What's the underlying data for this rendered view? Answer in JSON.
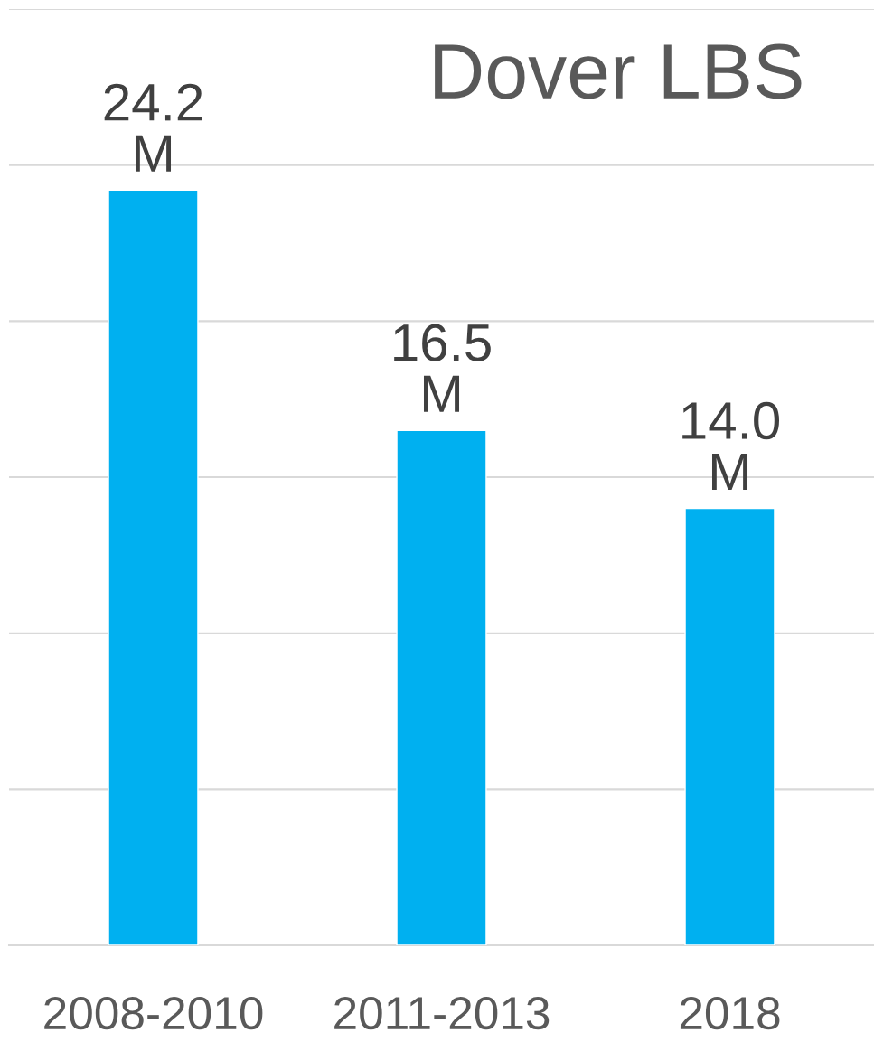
{
  "chart_data": {
    "type": "bar",
    "title": "Dover LBS",
    "categories": [
      "2008-2010",
      "2011-2013",
      "2018"
    ],
    "values": [
      24.2,
      16.5,
      14.0
    ],
    "value_labels": [
      "24.2\nM",
      "16.5\nM",
      "14.0\nM"
    ],
    "color": "#00b0f0",
    "ylim": [
      0,
      30
    ],
    "yticks": [
      {
        "value": 0,
        "label": null
      },
      {
        "value": 5,
        "label": null
      },
      {
        "value": 10,
        "label": null
      },
      {
        "value": 15,
        "label": null
      },
      {
        "value": 20,
        "label": null
      },
      {
        "value": 25,
        "label": null
      },
      {
        "value": 30,
        "label": null
      }
    ],
    "grid": "y",
    "tick_labels": "x",
    "legend": false
  }
}
